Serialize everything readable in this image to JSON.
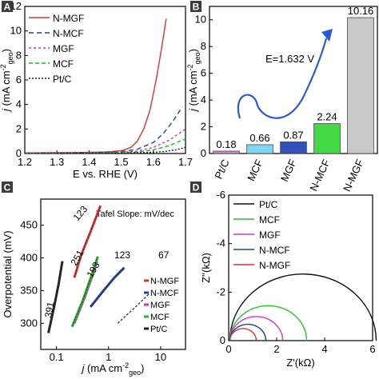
{
  "chart_data": [
    {
      "panel": "A",
      "type": "line",
      "xlabel": "E vs. RHE (V)",
      "ylabel_main": "j",
      "ylabel_unit": "(mA cm",
      "ylabel_sup": "-2",
      "ylabel_sub": "geo",
      "ylabel_close": ")",
      "xlim": [
        1.2,
        1.7
      ],
      "ylim": [
        0,
        12
      ],
      "xticks": [
        1.2,
        1.3,
        1.4,
        1.5,
        1.6,
        1.7
      ],
      "yticks": [
        0,
        2,
        4,
        6,
        8,
        10,
        12
      ],
      "series": [
        {
          "name": "N-MGF",
          "color": "#e03030",
          "dash": "",
          "x": [
            1.2,
            1.35,
            1.45,
            1.5,
            1.53,
            1.55,
            1.57,
            1.59,
            1.61,
            1.625,
            1.64
          ],
          "y": [
            0.05,
            0.08,
            0.12,
            0.22,
            0.5,
            1.0,
            2.0,
            3.6,
            6.2,
            8.5,
            11.0
          ]
        },
        {
          "name": "N-MCF",
          "color": "#283c9c",
          "dash": "6,4",
          "x": [
            1.2,
            1.4,
            1.5,
            1.55,
            1.6,
            1.63,
            1.66,
            1.69
          ],
          "y": [
            0.04,
            0.08,
            0.15,
            0.35,
            0.9,
            1.6,
            2.6,
            3.8
          ]
        },
        {
          "name": "MGF",
          "color": "#cc33cc",
          "dash": "3,3",
          "x": [
            1.2,
            1.4,
            1.5,
            1.55,
            1.6,
            1.65,
            1.7
          ],
          "y": [
            0.04,
            0.06,
            0.1,
            0.2,
            0.5,
            1.1,
            2.0
          ]
        },
        {
          "name": "MCF",
          "color": "#22b822",
          "dash": "5,3",
          "x": [
            1.2,
            1.45,
            1.55,
            1.6,
            1.65,
            1.7
          ],
          "y": [
            0.03,
            0.06,
            0.12,
            0.3,
            0.65,
            1.2
          ]
        },
        {
          "name": "Pt/C",
          "color": "#222222",
          "dash": "2,2",
          "x": [
            1.2,
            1.5,
            1.58,
            1.63,
            1.67,
            1.7
          ],
          "y": [
            0.02,
            0.04,
            0.08,
            0.15,
            0.3,
            0.5
          ]
        }
      ]
    },
    {
      "panel": "B",
      "type": "bar",
      "ylabel_main": "j",
      "ylabel_unit": "(mA cm",
      "ylabel_sup": "-2",
      "ylabel_sub": "geo",
      "ylabel_close": ")",
      "annotation": "E=1.632 V",
      "categories": [
        "Pt/C",
        "MCF",
        "MGF",
        "N-MCF",
        "N-MGF"
      ],
      "values": [
        0.18,
        0.66,
        0.87,
        2.24,
        10.16
      ],
      "value_labels": [
        "0.18",
        "0.66",
        "0.87",
        "2.24",
        "10.16"
      ],
      "colors": [
        "#d88ad8",
        "#7fd6f0",
        "#3350b8",
        "#45d845",
        "#c9c9c9"
      ],
      "ylim": [
        0,
        11
      ],
      "yticks": [
        0,
        2,
        4,
        6,
        8,
        10
      ]
    },
    {
      "panel": "C",
      "type": "scatter",
      "annotation": "Tafel Slope: mV/dec",
      "xlabel_main": "j",
      "xlabel_unit": "(mA cm",
      "xlabel_sup": "-2",
      "xlabel_sub": "geo",
      "xlabel_close": ")",
      "ylabel": "Overpotential (mV)",
      "xscale": "log",
      "xlim": [
        0.05,
        30
      ],
      "ylim": [
        260,
        490
      ],
      "xticks": [
        0.1,
        1,
        10
      ],
      "xtick_labels": [
        "0.1",
        "1",
        "10"
      ],
      "yticks": [
        300,
        350,
        400,
        450
      ],
      "slope_labels": [
        "123",
        "251",
        "193",
        "123",
        "67",
        "391"
      ],
      "series": [
        {
          "name": "N-MGF",
          "color": "#e03030",
          "x": [
            0.22,
            0.3,
            0.45,
            0.7
          ],
          "y": [
            370,
            405,
            440,
            480
          ],
          "slope": "123"
        },
        {
          "name": "N-MCF",
          "color": "#283c9c",
          "x": [
            0.45,
            0.8,
            1.3,
            2.0
          ],
          "y": [
            325,
            350,
            370,
            385
          ],
          "slope": "123"
        },
        {
          "name": "MGF",
          "color": "#cc33cc",
          "x": [
            0.22,
            0.35,
            0.5,
            0.6
          ],
          "y": [
            300,
            340,
            375,
            395
          ],
          "slope": "193"
        },
        {
          "name": "MCF",
          "color": "#22b822",
          "x": [
            0.2,
            0.32,
            0.48,
            0.62
          ],
          "y": [
            295,
            335,
            375,
            402
          ],
          "slope": "251"
        },
        {
          "name": "Pt/C",
          "color": "#222222",
          "x": [
            0.07,
            0.09,
            0.11,
            0.13
          ],
          "y": [
            285,
            325,
            360,
            395
          ],
          "slope": "391"
        }
      ],
      "extra_series": {
        "color": "#222222",
        "x": [
          1.5,
          3,
          6
        ],
        "y": [
          300,
          322,
          345
        ],
        "slope": "67"
      }
    },
    {
      "panel": "D",
      "type": "line",
      "xlabel": "Z'(kΩ)",
      "ylabel": "Z''(kΩ)",
      "xlim": [
        0,
        6
      ],
      "ylim": [
        0,
        -6
      ],
      "xticks": [
        0,
        2,
        4,
        6
      ],
      "yticks": [
        0,
        -2,
        -4,
        -6
      ],
      "series": [
        {
          "name": "Pt/C",
          "color": "#111111",
          "diameter": 6.1
        },
        {
          "name": "MCF",
          "color": "#22c822",
          "diameter": 3.2
        },
        {
          "name": "MGF",
          "color": "#d633d6",
          "diameter": 2.2
        },
        {
          "name": "N-MCF",
          "color": "#283c9c",
          "diameter": 1.5
        },
        {
          "name": "N-MGF",
          "color": "#e03030",
          "diameter": 1.1
        }
      ]
    }
  ],
  "panel_labels": [
    "A",
    "B",
    "C",
    "D"
  ]
}
